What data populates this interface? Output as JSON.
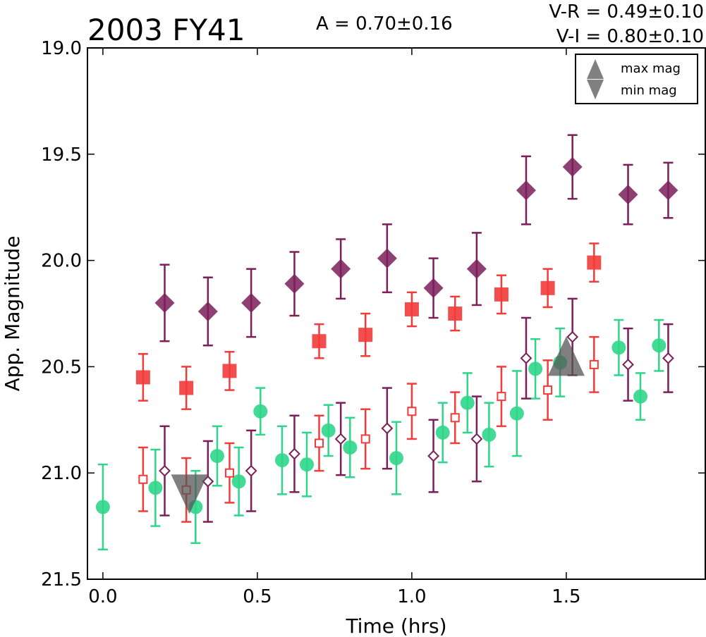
{
  "chart_data": {
    "type": "scatter",
    "title": "2003 FY41",
    "annotation_amplitude": "A  = 0.70±0.16",
    "annotation_vr": "V-R = 0.49±0.10",
    "annotation_vi": "V-I  = 0.80±0.10",
    "xlabel": "Time (hrs)",
    "ylabel": "App. Magnitude",
    "xlim": [
      -0.05,
      1.95
    ],
    "ylim": [
      21.5,
      19.0
    ],
    "y_inverted": true,
    "x_ticks": [
      "0.0",
      "0.5",
      "1.0",
      "1.5"
    ],
    "x_tick_values": [
      0.0,
      0.5,
      1.0,
      1.5
    ],
    "y_ticks": [
      "19.0",
      "19.5",
      "20.0",
      "20.5",
      "21.0",
      "21.5"
    ],
    "y_tick_values": [
      19.0,
      19.5,
      20.0,
      20.5,
      21.0,
      21.5
    ],
    "grid": false,
    "legend": {
      "placement": "top-right",
      "entries": [
        {
          "label": "max mag",
          "marker": "triangle-up"
        },
        {
          "label": "min mag",
          "marker": "triangle-down"
        }
      ]
    },
    "series": [
      {
        "marker": "filled-diamond",
        "color": "#7b1e5a",
        "points": [
          {
            "x": 0.2,
            "y": 20.2,
            "err": 0.18
          },
          {
            "x": 0.34,
            "y": 20.24,
            "err": 0.16
          },
          {
            "x": 0.48,
            "y": 20.2,
            "err": 0.16
          },
          {
            "x": 0.62,
            "y": 20.11,
            "err": 0.15
          },
          {
            "x": 0.77,
            "y": 20.04,
            "err": 0.14
          },
          {
            "x": 0.92,
            "y": 19.99,
            "err": 0.16
          },
          {
            "x": 1.07,
            "y": 20.13,
            "err": 0.14
          },
          {
            "x": 1.21,
            "y": 20.04,
            "err": 0.17
          },
          {
            "x": 1.37,
            "y": 19.67,
            "err": 0.16
          },
          {
            "x": 1.52,
            "y": 19.56,
            "err": 0.15
          },
          {
            "x": 1.7,
            "y": 19.69,
            "err": 0.14
          },
          {
            "x": 1.83,
            "y": 19.67,
            "err": 0.13
          }
        ]
      },
      {
        "marker": "filled-square",
        "color": "#f23b3b",
        "points": [
          {
            "x": 0.13,
            "y": 20.55,
            "err": 0.11
          },
          {
            "x": 0.27,
            "y": 20.6,
            "err": 0.1
          },
          {
            "x": 0.41,
            "y": 20.52,
            "err": 0.09
          },
          {
            "x": 0.7,
            "y": 20.38,
            "err": 0.08
          },
          {
            "x": 0.85,
            "y": 20.35,
            "err": 0.1
          },
          {
            "x": 1.0,
            "y": 20.23,
            "err": 0.08
          },
          {
            "x": 1.14,
            "y": 20.25,
            "err": 0.08
          },
          {
            "x": 1.29,
            "y": 20.16,
            "err": 0.09
          },
          {
            "x": 1.44,
            "y": 20.13,
            "err": 0.09
          },
          {
            "x": 1.59,
            "y": 20.01,
            "err": 0.09
          }
        ]
      },
      {
        "marker": "filled-circle",
        "color": "#2fd68a",
        "points": [
          {
            "x": 0.0,
            "y": 21.16,
            "err": 0.2
          },
          {
            "x": 0.17,
            "y": 21.07,
            "err": 0.18
          },
          {
            "x": 0.3,
            "y": 21.16,
            "err": 0.17
          },
          {
            "x": 0.37,
            "y": 20.92,
            "err": 0.14
          },
          {
            "x": 0.44,
            "y": 21.04,
            "err": 0.16
          },
          {
            "x": 0.51,
            "y": 20.71,
            "err": 0.11
          },
          {
            "x": 0.58,
            "y": 20.94,
            "err": 0.16
          },
          {
            "x": 0.66,
            "y": 20.96,
            "err": 0.15
          },
          {
            "x": 0.73,
            "y": 20.8,
            "err": 0.12
          },
          {
            "x": 0.8,
            "y": 20.88,
            "err": 0.14
          },
          {
            "x": 0.95,
            "y": 20.93,
            "err": 0.17
          },
          {
            "x": 1.1,
            "y": 20.81,
            "err": 0.14
          },
          {
            "x": 1.18,
            "y": 20.67,
            "err": 0.14
          },
          {
            "x": 1.25,
            "y": 20.82,
            "err": 0.15
          },
          {
            "x": 1.34,
            "y": 20.72,
            "err": 0.2
          },
          {
            "x": 1.4,
            "y": 20.51,
            "err": 0.14
          },
          {
            "x": 1.48,
            "y": 20.48,
            "err": 0.16
          },
          {
            "x": 1.67,
            "y": 20.41,
            "err": 0.13
          },
          {
            "x": 1.74,
            "y": 20.64,
            "err": 0.11
          },
          {
            "x": 1.8,
            "y": 20.4,
            "err": 0.12
          }
        ]
      },
      {
        "marker": "open-square",
        "color": "#f23b3b",
        "points": [
          {
            "x": 0.13,
            "y": 21.03,
            "err": 0.15
          },
          {
            "x": 0.27,
            "y": 21.08,
            "err": 0.15
          },
          {
            "x": 0.41,
            "y": 21.0,
            "err": 0.14
          },
          {
            "x": 0.7,
            "y": 20.86,
            "err": 0.13
          },
          {
            "x": 0.85,
            "y": 20.84,
            "err": 0.14
          },
          {
            "x": 1.0,
            "y": 20.71,
            "err": 0.13
          },
          {
            "x": 1.14,
            "y": 20.74,
            "err": 0.12
          },
          {
            "x": 1.29,
            "y": 20.64,
            "err": 0.14
          },
          {
            "x": 1.44,
            "y": 20.61,
            "err": 0.14
          },
          {
            "x": 1.59,
            "y": 20.49,
            "err": 0.13
          }
        ]
      },
      {
        "marker": "open-diamond",
        "color": "#7b1e5a",
        "points": [
          {
            "x": 0.2,
            "y": 20.99,
            "err": 0.21
          },
          {
            "x": 0.34,
            "y": 21.04,
            "err": 0.19
          },
          {
            "x": 0.48,
            "y": 20.99,
            "err": 0.19
          },
          {
            "x": 0.62,
            "y": 20.91,
            "err": 0.18
          },
          {
            "x": 0.77,
            "y": 20.84,
            "err": 0.17
          },
          {
            "x": 0.92,
            "y": 20.79,
            "err": 0.19
          },
          {
            "x": 1.07,
            "y": 20.92,
            "err": 0.17
          },
          {
            "x": 1.21,
            "y": 20.84,
            "err": 0.2
          },
          {
            "x": 1.37,
            "y": 20.46,
            "err": 0.19
          },
          {
            "x": 1.52,
            "y": 20.36,
            "err": 0.18
          },
          {
            "x": 1.7,
            "y": 20.49,
            "err": 0.17
          },
          {
            "x": 1.83,
            "y": 20.46,
            "err": 0.16
          }
        ]
      }
    ],
    "markers": [
      {
        "label": "max mag",
        "shape": "triangle-up",
        "x": 1.5,
        "y": 20.45
      },
      {
        "label": "min mag",
        "shape": "triangle-down",
        "x": 0.28,
        "y": 21.1
      }
    ]
  }
}
